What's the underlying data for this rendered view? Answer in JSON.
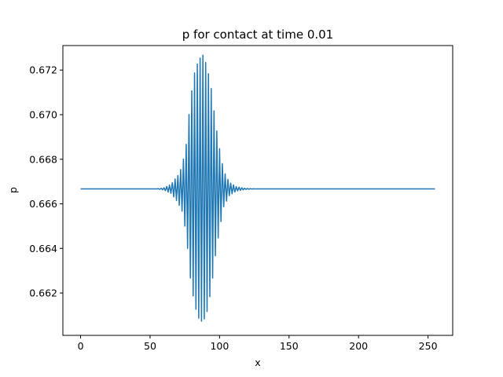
{
  "chart_data": {
    "type": "line",
    "title": "p for contact at time 0.01",
    "xlabel": "x",
    "ylabel": "p",
    "xlim": [
      -12.75,
      267.75
    ],
    "ylim": [
      0.6601,
      0.6731
    ],
    "xticks": [
      0,
      50,
      100,
      150,
      200,
      250
    ],
    "xtick_labels": [
      "0",
      "50",
      "100",
      "150",
      "200",
      "250"
    ],
    "yticks": [
      0.662,
      0.664,
      0.666,
      0.668,
      0.67,
      0.672
    ],
    "ytick_labels": [
      "0.662",
      "0.664",
      "0.666",
      "0.668",
      "0.670",
      "0.672"
    ],
    "grid": false,
    "line_color": "#1f77b4",
    "series": [
      {
        "baseline": 0.66667,
        "x_range": [
          0,
          255
        ],
        "oscillation_region": [
          55,
          125
        ],
        "envelope_points": [
          {
            "x": 55,
            "amplitude": 0.0
          },
          {
            "x": 60,
            "amplitude": 5e-05
          },
          {
            "x": 65,
            "amplitude": 0.0002
          },
          {
            "x": 70,
            "amplitude": 0.0006
          },
          {
            "x": 73,
            "amplitude": 0.001
          },
          {
            "x": 76,
            "amplitude": 0.002
          },
          {
            "x": 79,
            "amplitude": 0.004
          },
          {
            "x": 82,
            "amplitude": 0.0052
          },
          {
            "x": 85,
            "amplitude": 0.0058
          },
          {
            "x": 88,
            "amplitude": 0.006
          },
          {
            "x": 91,
            "amplitude": 0.0055
          },
          {
            "x": 94,
            "amplitude": 0.0045
          },
          {
            "x": 97,
            "amplitude": 0.003
          },
          {
            "x": 100,
            "amplitude": 0.0018
          },
          {
            "x": 103,
            "amplitude": 0.0008
          },
          {
            "x": 107,
            "amplitude": 0.0003
          },
          {
            "x": 112,
            "amplitude": 0.0001
          },
          {
            "x": 118,
            "amplitude": 3e-05
          },
          {
            "x": 125,
            "amplitude": 0.0
          }
        ],
        "oscillation_period": 2
      }
    ]
  }
}
